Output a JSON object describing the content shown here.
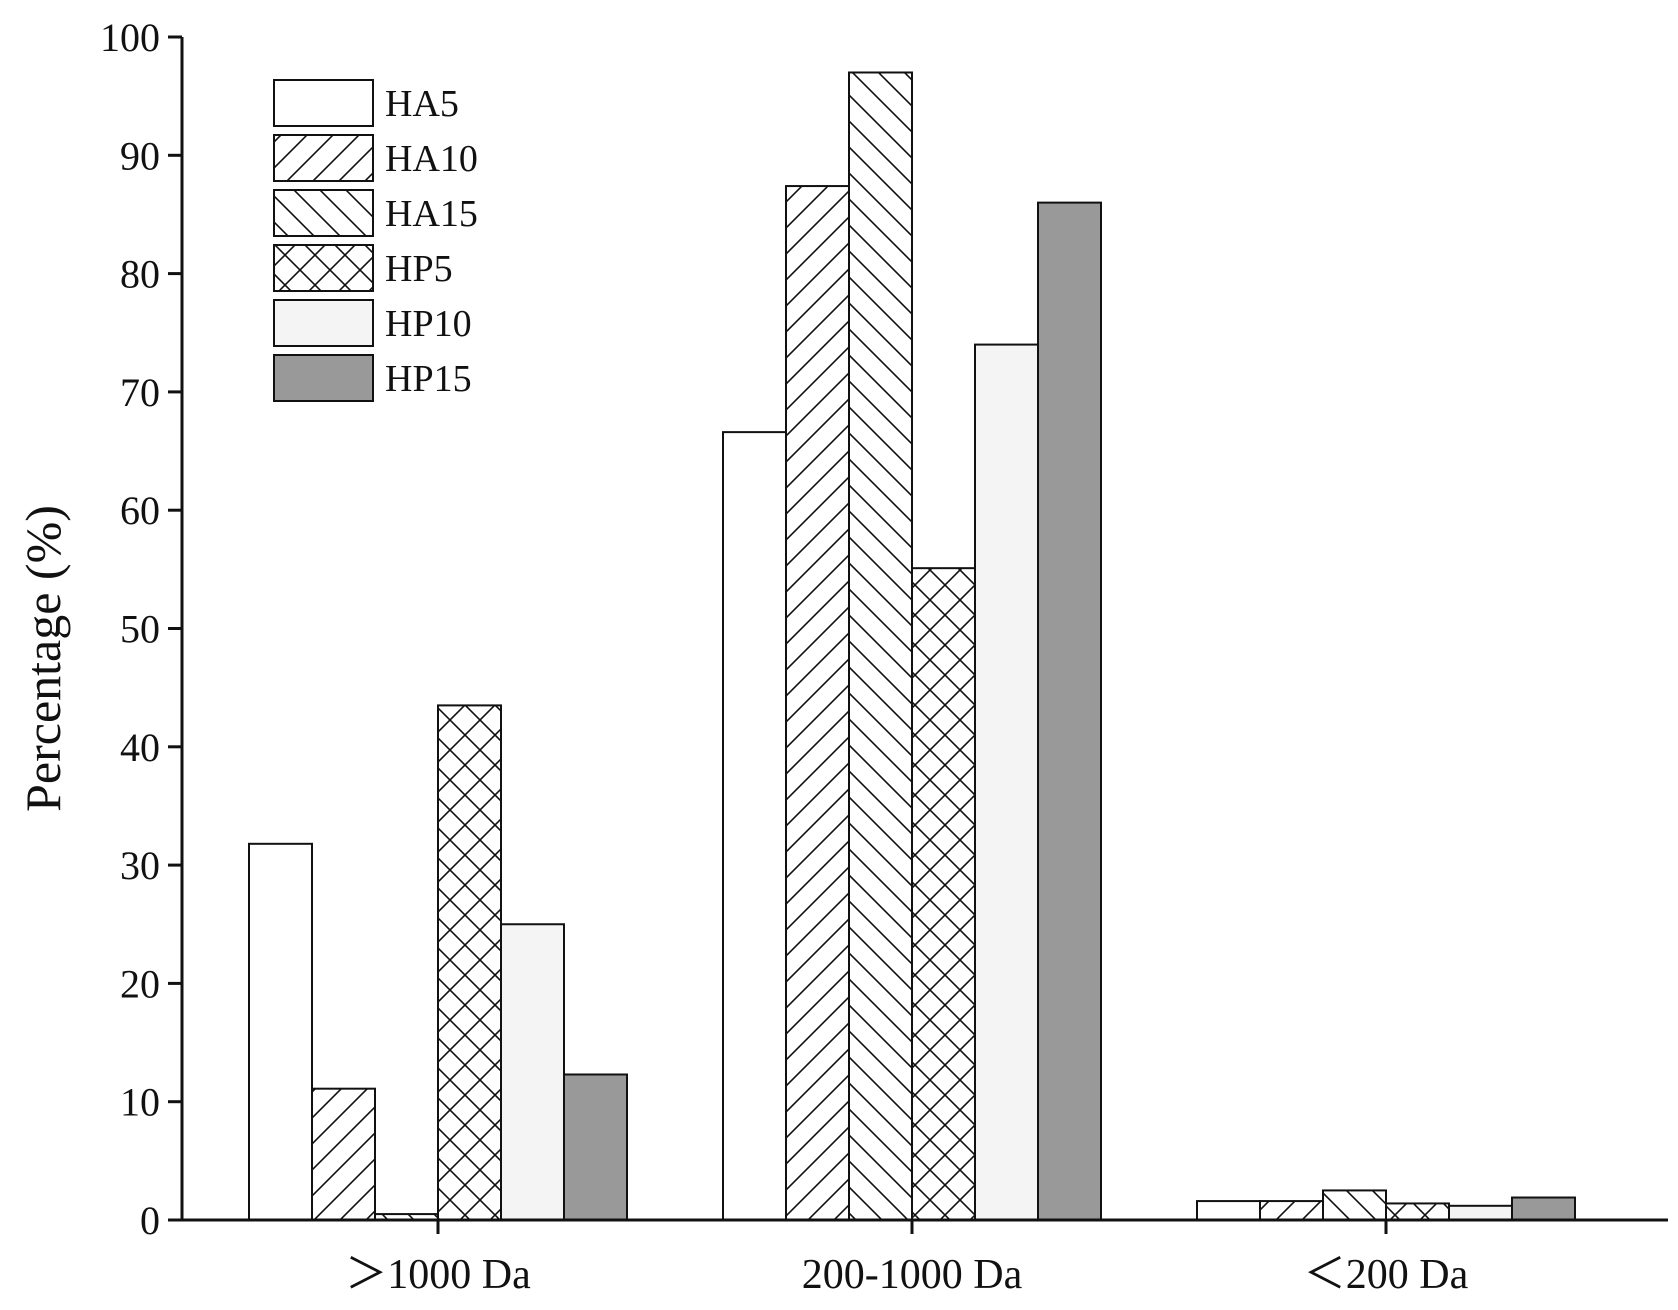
{
  "chart_data": {
    "type": "bar",
    "categories": [
      ">1000 Da",
      "200-1000 Da",
      "<200 Da"
    ],
    "category_display": [
      "＞1000 Da",
      "200-1000 Da",
      "＜200 Da"
    ],
    "series": [
      {
        "name": "HA5",
        "values": [
          31.8,
          66.6,
          1.6
        ],
        "fill": "#ffffff",
        "pattern": "none"
      },
      {
        "name": "HA10",
        "values": [
          11.1,
          87.4,
          1.6
        ],
        "fill": "#ffffff",
        "pattern": "forward-diagonal"
      },
      {
        "name": "HA15",
        "values": [
          0.5,
          97.0,
          2.5
        ],
        "fill": "#ffffff",
        "pattern": "backward-diagonal"
      },
      {
        "name": "HP5",
        "values": [
          43.5,
          55.1,
          1.4
        ],
        "fill": "#ffffff",
        "pattern": "crosshatch"
      },
      {
        "name": "HP10",
        "values": [
          25.0,
          74.0,
          1.2
        ],
        "fill": "#f4f4f4",
        "pattern": "none"
      },
      {
        "name": "HP15",
        "values": [
          12.3,
          86.0,
          1.9
        ],
        "fill": "#999999",
        "pattern": "none"
      }
    ],
    "title": "",
    "xlabel": "",
    "ylabel": "Percentage (%)",
    "ylim": [
      0,
      100
    ],
    "yticks": [
      0,
      10,
      20,
      30,
      40,
      50,
      60,
      70,
      80,
      90,
      100
    ],
    "grid": false,
    "legend_position": "top-left"
  }
}
